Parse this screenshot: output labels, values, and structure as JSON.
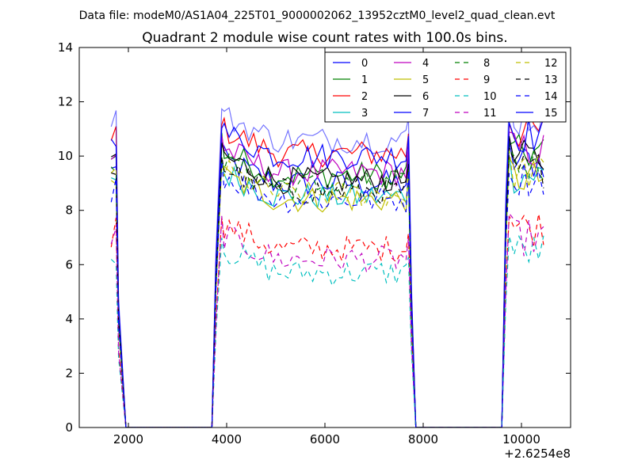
{
  "chart_data": {
    "type": "line",
    "suptitle": "Data file: modeM0/AS1A04_225T01_9000002062_13952cztM0_level2_quad_clean.evt",
    "title": "Quadrant 2 module wise count rates with 100.0s bins.",
    "xlabel": "",
    "ylabel": "",
    "x_offset_label": "+2.6254e8",
    "xlim": [
      1000,
      11000
    ],
    "ylim": [
      0,
      14
    ],
    "xticks": [
      2000,
      4000,
      6000,
      8000,
      10000
    ],
    "yticks": [
      0,
      2,
      4,
      6,
      8,
      10,
      12,
      14
    ],
    "grid": false,
    "legend": {
      "placement": "top-right",
      "columns": 4
    },
    "segments": [
      {
        "x0": 1650,
        "rise_end": 1750,
        "fall_end": 1950
      },
      {
        "x0": 3700,
        "rise_end": 3900,
        "fall_end": 7850
      },
      {
        "x0": 9600,
        "rise_end": 9750,
        "fall_end": 10450
      }
    ],
    "series": [
      {
        "name": "0",
        "color": "#0000ff",
        "dash": "solid",
        "level": 9.0
      },
      {
        "name": "1",
        "color": "#008000",
        "dash": "solid",
        "level": 9.3
      },
      {
        "name": "2",
        "color": "#ff0000",
        "dash": "solid",
        "level": 10.1
      },
      {
        "name": "3",
        "color": "#00bfbf",
        "dash": "solid",
        "level": 8.5
      },
      {
        "name": "4",
        "color": "#bf00bf",
        "dash": "solid",
        "level": 9.4
      },
      {
        "name": "5",
        "color": "#bfbf00",
        "dash": "solid",
        "level": 8.4
      },
      {
        "name": "6",
        "color": "#000000",
        "dash": "solid",
        "level": 9.1
      },
      {
        "name": "7",
        "color": "#0000ff",
        "dash": "solid",
        "level": 10.0
      },
      {
        "name": "8",
        "color": "#008000",
        "dash": "dashed",
        "level": 8.9
      },
      {
        "name": "9",
        "color": "#ff0000",
        "dash": "dashed",
        "level": 6.6
      },
      {
        "name": "10",
        "color": "#00bfbf",
        "dash": "dashed",
        "level": 5.7
      },
      {
        "name": "11",
        "color": "#bf00bf",
        "dash": "dashed",
        "level": 6.2
      },
      {
        "name": "12",
        "color": "#bfbf00",
        "dash": "dashed",
        "level": 8.6
      },
      {
        "name": "13",
        "color": "#000000",
        "dash": "dashed",
        "level": 8.7
      },
      {
        "name": "14",
        "color": "#0000ff",
        "dash": "dashed",
        "level": 8.4
      },
      {
        "name": "15",
        "color": "#0000ff",
        "dash": "solid",
        "level": 10.6
      }
    ]
  }
}
